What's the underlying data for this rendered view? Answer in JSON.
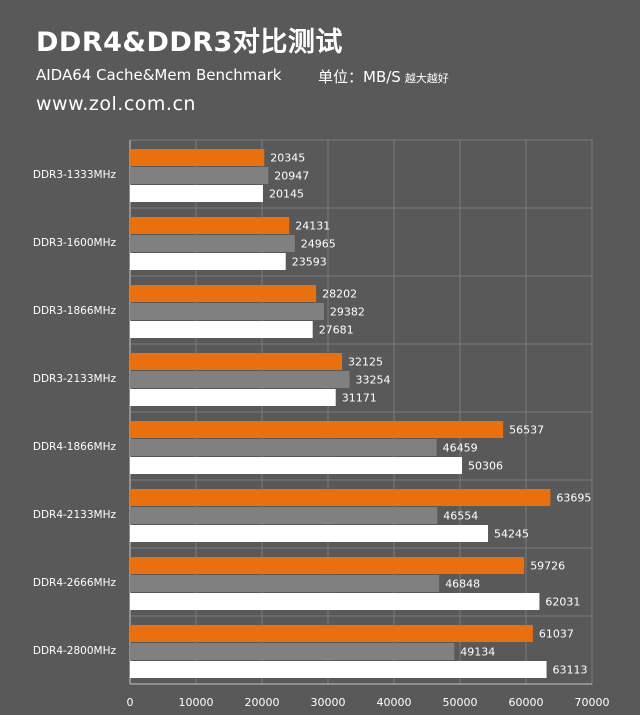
{
  "header": {
    "title": "DDR4&DDR3对比测试",
    "subtitle": "AIDA64  Cache&Mem Benchmark",
    "unit": "单位：MB/S",
    "unit_note": "越大越好",
    "site": "www.zol.com.cn"
  },
  "colors": {
    "background": "#595959",
    "series": [
      "#E8700F",
      "#808080",
      "#FFFFFF"
    ],
    "grid": "#7A7A7A"
  },
  "chart_data": {
    "type": "bar",
    "orientation": "horizontal",
    "categories": [
      "DDR3-1333MHz",
      "DDR3-1600MHz",
      "DDR3-1866MHz",
      "DDR3-2133MHz",
      "DDR4-1866MHz",
      "DDR4-2133MHz",
      "DDR4-2666MHz",
      "DDR4-2800MHz"
    ],
    "series": [
      {
        "values": [
          20345,
          24131,
          28202,
          32125,
          56537,
          63695,
          59726,
          61037
        ]
      },
      {
        "values": [
          20947,
          24965,
          29382,
          33254,
          46459,
          46554,
          46848,
          49134
        ]
      },
      {
        "values": [
          20145,
          23593,
          27681,
          31171,
          50306,
          54245,
          62031,
          63113
        ]
      }
    ],
    "xlim": [
      0,
      70000
    ],
    "xticks": [
      "0",
      "10000",
      "20000",
      "30000",
      "40000",
      "50000",
      "60000",
      "70000"
    ],
    "grid": true,
    "legend": "none"
  }
}
